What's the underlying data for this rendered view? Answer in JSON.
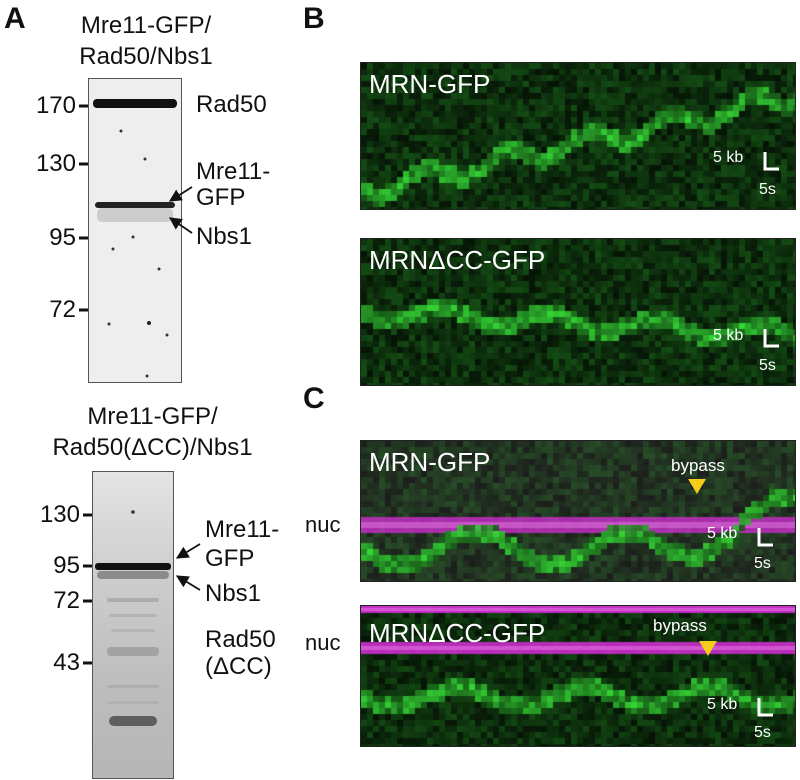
{
  "panel_a": {
    "letter": "A",
    "gel1": {
      "caption_line1": "Mre11-GFP/",
      "caption_line2": "Rad50/Nbs1",
      "markers": [
        "170",
        "130",
        "95",
        "72"
      ],
      "band_labels": {
        "rad50": "Rad50",
        "mre11_line1": "Mre11-",
        "mre11_line2": "GFP",
        "nbs1": "Nbs1"
      }
    },
    "gel2": {
      "caption_line1": "Mre11-GFP/",
      "caption_line2": "Rad50(ΔCC)/Nbs1",
      "markers": [
        "130",
        "95",
        "72",
        "43"
      ],
      "band_labels": {
        "mre11_line1": "Mre11-",
        "mre11_line2": "GFP",
        "nbs1": "Nbs1",
        "rad50_line1": "Rad50",
        "rad50_line2": "(ΔCC)"
      }
    }
  },
  "panel_b": {
    "letter": "B",
    "kymo1": {
      "title": "MRN-GFP",
      "scale_kb": "5 kb",
      "scale_s": "5s"
    },
    "kymo2": {
      "title": "MRNΔCC-GFP",
      "scale_kb": "5 kb",
      "scale_s": "5s"
    }
  },
  "panel_c": {
    "letter": "C",
    "kymo1": {
      "title": "MRN-GFP",
      "annotation": "bypass",
      "side_label": "nuc",
      "scale_kb": "5 kb",
      "scale_s": "5s"
    },
    "kymo2": {
      "title": "MRNΔCC-GFP",
      "annotation": "bypass",
      "side_label": "nuc",
      "scale_kb": "5 kb",
      "scale_s": "5s"
    }
  },
  "colors": {
    "gfp": "#3cd03c",
    "nucleosome": "#d02ad0",
    "arrowhead": "#f5cc1a"
  }
}
